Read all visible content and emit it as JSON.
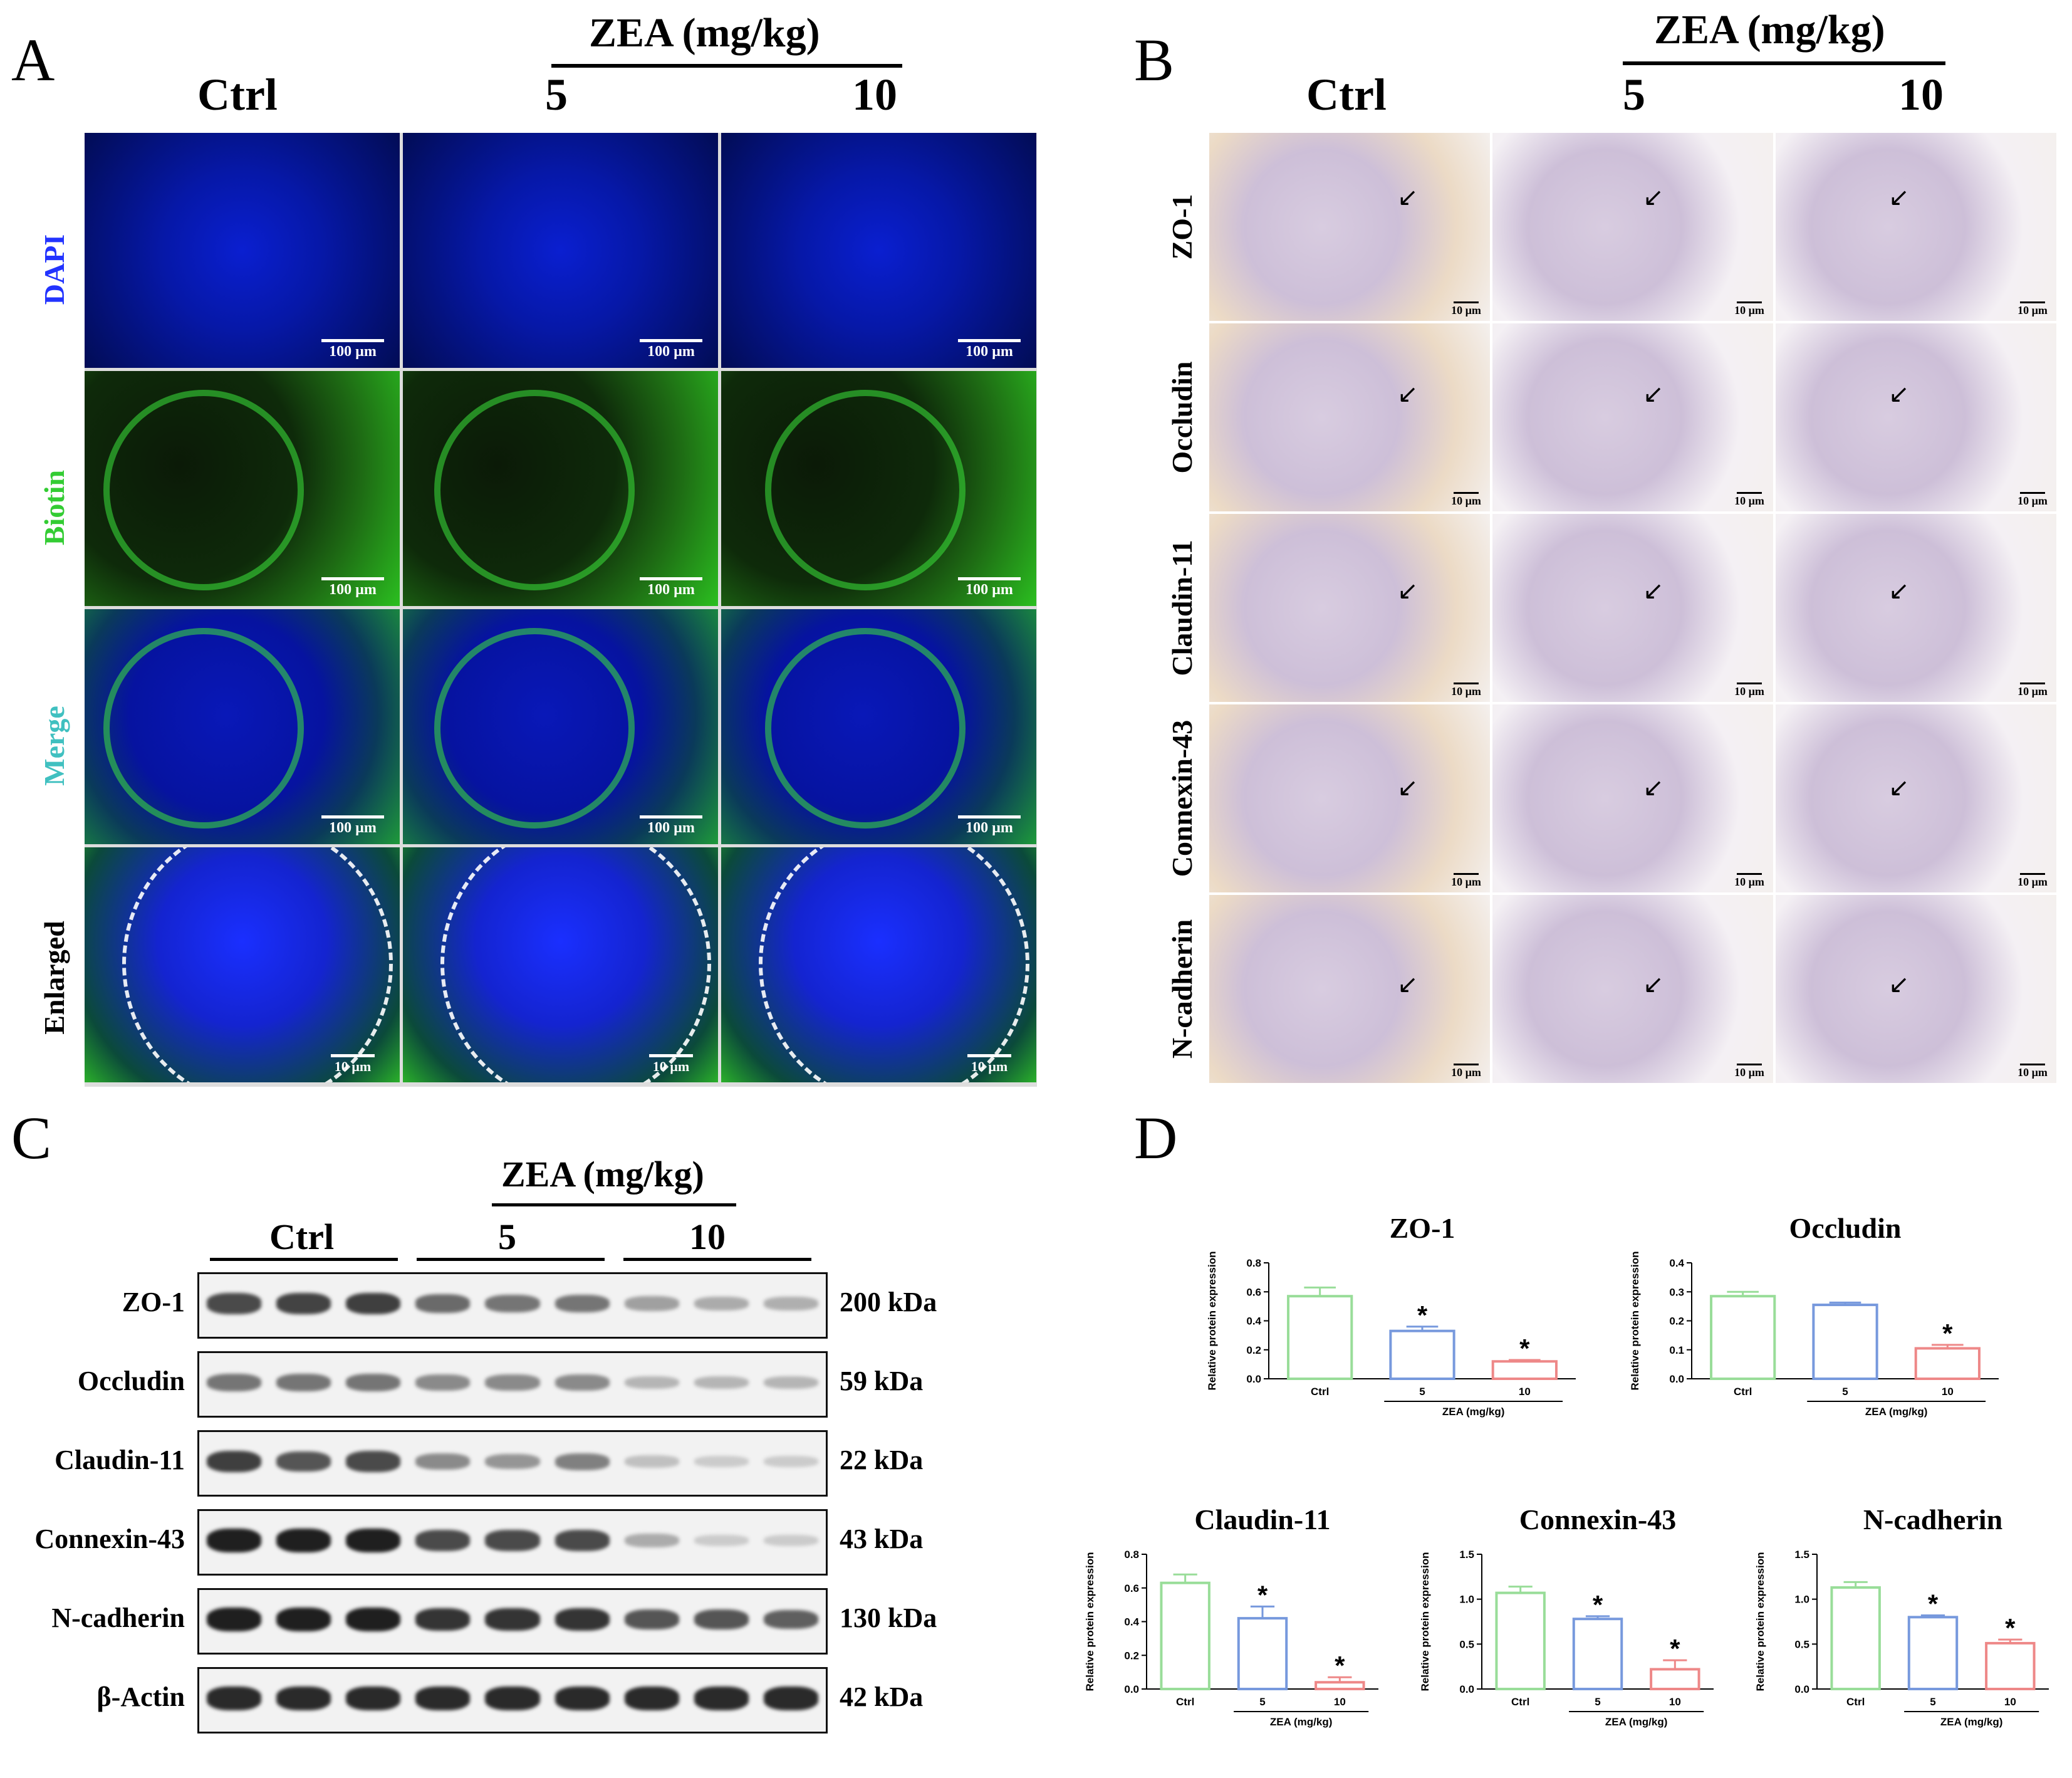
{
  "panels": {
    "A": "A",
    "B": "B",
    "C": "C",
    "D": "D"
  },
  "groups": {
    "ctrl": "Ctrl",
    "zea_header": "ZEA (mg/kg)",
    "dose5": "5",
    "dose10": "10"
  },
  "panelA": {
    "rows": [
      "DAPI",
      "Biotin",
      "Merge",
      "Enlarged"
    ],
    "row_colors": [
      "#2233ff",
      "#33dd33",
      "#40c0c0",
      "#000000"
    ],
    "scale_100": "100 µm",
    "scale_10": "10 µm"
  },
  "panelB": {
    "rows": [
      "ZO-1",
      "Occludin",
      "Claudin-11",
      "Connexin-43",
      "N-cadherin"
    ],
    "scale_10": "10 µm"
  },
  "panelC": {
    "proteins": [
      {
        "name": "ZO-1",
        "kda": "200 kDa",
        "intensity": [
          0.75,
          0.78,
          0.8,
          0.6,
          0.55,
          0.55,
          0.35,
          0.3,
          0.28
        ]
      },
      {
        "name": "Occludin",
        "kda": "59 kDa",
        "intensity": [
          0.55,
          0.55,
          0.55,
          0.45,
          0.45,
          0.45,
          0.25,
          0.25,
          0.25
        ]
      },
      {
        "name": "Claudin-11",
        "kda": "22 kDa",
        "intensity": [
          0.8,
          0.7,
          0.75,
          0.45,
          0.4,
          0.5,
          0.2,
          0.15,
          0.15
        ]
      },
      {
        "name": "Connexin-43",
        "kda": "43 kDa",
        "intensity": [
          0.95,
          0.95,
          0.95,
          0.75,
          0.75,
          0.75,
          0.3,
          0.15,
          0.15
        ]
      },
      {
        "name": "N-cadherin",
        "kda": "130 kDa",
        "intensity": [
          0.95,
          0.95,
          0.95,
          0.85,
          0.85,
          0.85,
          0.7,
          0.7,
          0.65
        ]
      },
      {
        "name": "β-Actin",
        "kda": "42 kDa",
        "intensity": [
          0.9,
          0.9,
          0.9,
          0.9,
          0.9,
          0.9,
          0.9,
          0.9,
          0.9
        ]
      }
    ]
  },
  "chart_data": [
    {
      "type": "bar",
      "title": "ZO-1",
      "ylabel": "Relative protein expression",
      "xlabel": "ZEA (mg/kg)",
      "categories": [
        "Ctrl",
        "5",
        "10"
      ],
      "values": [
        0.57,
        0.33,
        0.12
      ],
      "errors": [
        0.06,
        0.03,
        0.01
      ],
      "significance": [
        "",
        "*",
        "*"
      ],
      "ylim": [
        0,
        0.8
      ],
      "yticks": [
        "0.0",
        "0.2",
        "0.4",
        "0.6",
        "0.8"
      ],
      "colors": [
        "#99dd99",
        "#7799dd",
        "#ee8888"
      ]
    },
    {
      "type": "bar",
      "title": "Occludin",
      "ylabel": "Relative protein expression",
      "xlabel": "ZEA (mg/kg)",
      "categories": [
        "Ctrl",
        "5",
        "10"
      ],
      "values": [
        0.285,
        0.255,
        0.105
      ],
      "errors": [
        0.015,
        0.008,
        0.012
      ],
      "significance": [
        "",
        "",
        "*"
      ],
      "ylim": [
        0,
        0.4
      ],
      "yticks": [
        "0.0",
        "0.1",
        "0.2",
        "0.3",
        "0.4"
      ],
      "colors": [
        "#99dd99",
        "#7799dd",
        "#ee8888"
      ]
    },
    {
      "type": "bar",
      "title": "Claudin-11",
      "ylabel": "Relative protein expression",
      "xlabel": "ZEA (mg/kg)",
      "categories": [
        "Ctrl",
        "5",
        "10"
      ],
      "values": [
        0.63,
        0.42,
        0.04
      ],
      "errors": [
        0.05,
        0.07,
        0.03
      ],
      "significance": [
        "",
        "*",
        "*"
      ],
      "ylim": [
        0,
        0.8
      ],
      "yticks": [
        "0.0",
        "0.2",
        "0.4",
        "0.6",
        "0.8"
      ],
      "colors": [
        "#99dd99",
        "#7799dd",
        "#ee8888"
      ]
    },
    {
      "type": "bar",
      "title": "Connexin-43",
      "ylabel": "Relative protein expression",
      "xlabel": "ZEA (mg/kg)",
      "categories": [
        "Ctrl",
        "5",
        "10"
      ],
      "values": [
        1.07,
        0.78,
        0.22
      ],
      "errors": [
        0.07,
        0.03,
        0.1
      ],
      "significance": [
        "",
        "*",
        "*"
      ],
      "ylim": [
        0,
        1.5
      ],
      "yticks": [
        "0.0",
        "0.5",
        "1.0",
        "1.5"
      ],
      "colors": [
        "#99dd99",
        "#7799dd",
        "#ee8888"
      ]
    },
    {
      "type": "bar",
      "title": "N-cadherin",
      "ylabel": "Relative protein expression",
      "xlabel": "ZEA (mg/kg)",
      "categories": [
        "Ctrl",
        "5",
        "10"
      ],
      "values": [
        1.13,
        0.8,
        0.51
      ],
      "errors": [
        0.06,
        0.02,
        0.04
      ],
      "significance": [
        "",
        "*",
        "*"
      ],
      "ylim": [
        0,
        1.5
      ],
      "yticks": [
        "0.0",
        "0.5",
        "1.0",
        "1.5"
      ],
      "colors": [
        "#99dd99",
        "#7799dd",
        "#ee8888"
      ]
    }
  ]
}
